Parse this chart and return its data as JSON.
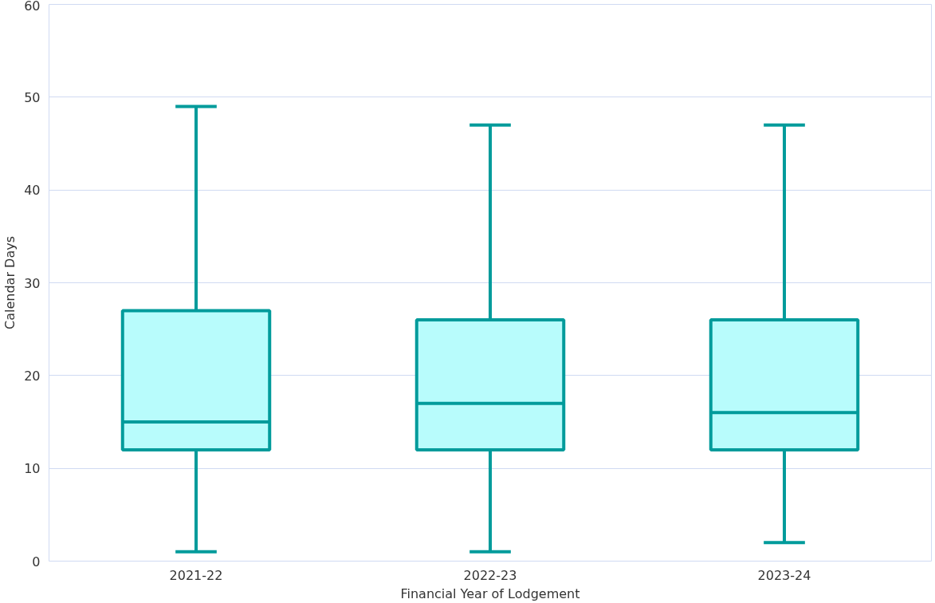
{
  "chart_data": {
    "type": "box",
    "xlabel": "Financial Year of Lodgement",
    "ylabel": "Calendar Days",
    "categories": [
      "2021-22",
      "2022-23",
      "2023-24"
    ],
    "series": [
      {
        "color": "#009b9b",
        "boxes": [
          {
            "low": 1,
            "q1": 12,
            "median": 15,
            "q3": 27,
            "high": 49
          },
          {
            "low": 1,
            "q1": 12,
            "median": 17,
            "q3": 26,
            "high": 47
          },
          {
            "low": 2,
            "q1": 12,
            "median": 16,
            "q3": 26,
            "high": 47
          }
        ]
      }
    ],
    "ylim": [
      0,
      60
    ],
    "yticks": [
      0,
      10,
      20,
      30,
      40,
      50,
      60
    ],
    "grid": "y"
  }
}
